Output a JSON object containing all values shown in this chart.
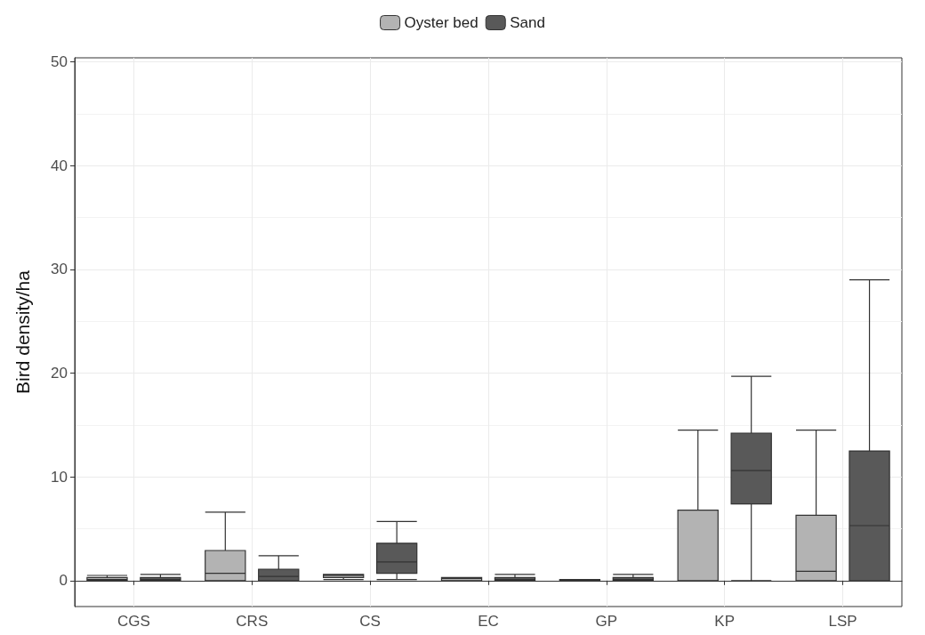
{
  "chart_data": {
    "type": "box",
    "ylabel": "Bird density/ha",
    "categories": [
      "CGS",
      "CRS",
      "CS",
      "EC",
      "GP",
      "KP",
      "LSP"
    ],
    "series": [
      {
        "name": "Oyster bed",
        "color": "#b3b3b3",
        "boxes": [
          {
            "low": 0,
            "q1": 0,
            "median": 0.1,
            "q3": 0.3,
            "high": 0.5
          },
          {
            "low": 0,
            "q1": 0,
            "median": 0.7,
            "q3": 2.9,
            "high": 6.6
          },
          {
            "low": 0.1,
            "q1": 0.3,
            "median": 0.5,
            "q3": 0.6,
            "high": 0.6
          },
          {
            "low": 0,
            "q1": 0,
            "median": 0.2,
            "q3": 0.3,
            "high": 0.3
          },
          {
            "low": 0,
            "q1": 0,
            "median": 0,
            "q3": 0.1,
            "high": 0.1
          },
          {
            "low": 0,
            "q1": 0,
            "median": 0,
            "q3": 6.8,
            "high": 14.5
          },
          {
            "low": 0,
            "q1": 0,
            "median": 0.9,
            "q3": 6.3,
            "high": 14.5
          }
        ]
      },
      {
        "name": "Sand",
        "color": "#595959",
        "boxes": [
          {
            "low": 0,
            "q1": 0,
            "median": 0.1,
            "q3": 0.3,
            "high": 0.6
          },
          {
            "low": 0,
            "q1": 0,
            "median": 0.4,
            "q3": 1.1,
            "high": 2.4
          },
          {
            "low": 0.1,
            "q1": 0.7,
            "median": 1.8,
            "q3": 3.6,
            "high": 5.7
          },
          {
            "low": 0,
            "q1": 0,
            "median": 0.1,
            "q3": 0.3,
            "high": 0.6
          },
          {
            "low": 0,
            "q1": 0,
            "median": 0.1,
            "q3": 0.3,
            "high": 0.6
          },
          {
            "low": 0,
            "q1": 7.4,
            "median": 10.6,
            "q3": 14.2,
            "high": 19.7
          },
          {
            "low": 0,
            "q1": 0,
            "median": 5.3,
            "q3": 12.5,
            "high": 29
          }
        ]
      }
    ],
    "ylim": [
      -2.5,
      50.4
    ],
    "yticks": [
      0,
      10,
      20,
      30,
      40,
      50
    ],
    "grid": true,
    "legend": "top"
  }
}
